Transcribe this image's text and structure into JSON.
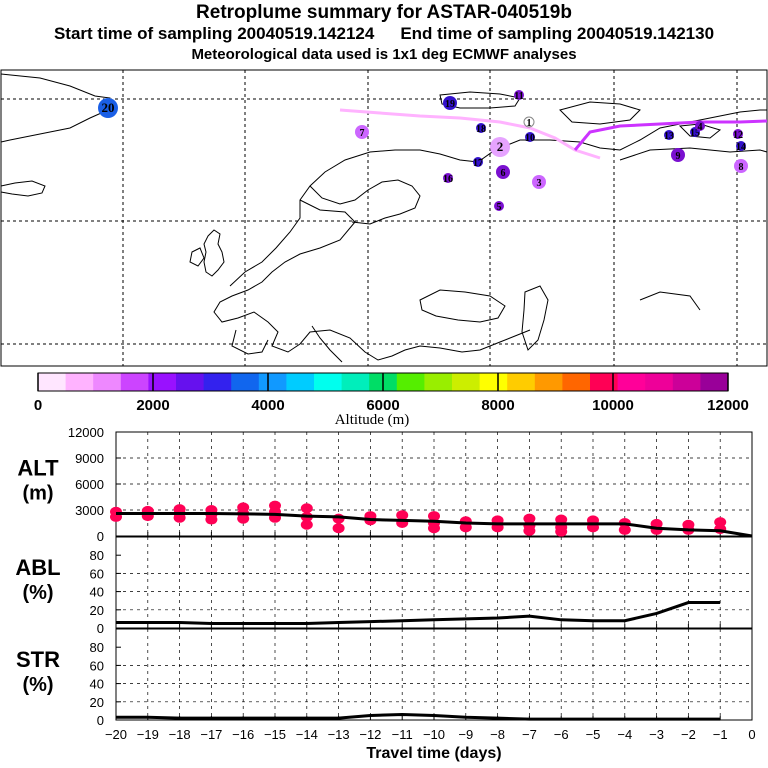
{
  "header": {
    "title": "Retroplume summary for ASTAR-040519b",
    "start_label": "Start time of sampling 20040519.142124",
    "end_label": "End time of sampling 20040519.142130",
    "met_label": "Meteorological data used is 1x1 deg ECMWF analyses"
  },
  "map": {
    "path_color_1": "#ffb3ff",
    "path_color_2": "#cc33ff",
    "markers": [
      {
        "label": "20",
        "color": "#1a5fe6",
        "size": "large"
      },
      {
        "label": "19",
        "color": "#3311cc",
        "size": "medium"
      },
      {
        "label": "18",
        "color": "#3311cc",
        "size": "small"
      },
      {
        "label": "17",
        "color": "#3311cc",
        "size": "small"
      },
      {
        "label": "16",
        "color": "#7a10d0",
        "size": "small"
      },
      {
        "label": "15",
        "color": "#3311cc",
        "size": "small"
      },
      {
        "label": "14",
        "color": "#3311cc",
        "size": "small"
      },
      {
        "label": "13",
        "color": "#3311cc",
        "size": "small"
      },
      {
        "label": "12",
        "color": "#7a10d0",
        "size": "small"
      },
      {
        "label": "11",
        "color": "#7a10d0",
        "size": "small"
      },
      {
        "label": "10",
        "color": "#3311cc",
        "size": "small"
      },
      {
        "label": "9",
        "color": "#7a10d0",
        "size": "medium"
      },
      {
        "label": "8",
        "color": "#cc66ff",
        "size": "medium"
      },
      {
        "label": "7",
        "color": "#cc66ff",
        "size": "medium"
      },
      {
        "label": "6",
        "color": "#7a10d0",
        "size": "medium"
      },
      {
        "label": "5",
        "color": "#7a10d0",
        "size": "small"
      },
      {
        "label": "4",
        "color": "#7a10d0",
        "size": "small"
      },
      {
        "label": "3",
        "color": "#cc66ff",
        "size": "medium"
      },
      {
        "label": "2",
        "color": "#e6a3ff",
        "size": "large"
      },
      {
        "label": "1",
        "color": "#ffffff",
        "size": "small"
      }
    ]
  },
  "colorbar": {
    "tick_labels": [
      "0",
      "2000",
      "4000",
      "6000",
      "8000",
      "10000",
      "12000"
    ],
    "title": "Altitude (m)",
    "colors": [
      "#ffe6ff",
      "#ffb3ff",
      "#ee88ff",
      "#cc44ff",
      "#9911ff",
      "#6611ee",
      "#3322ee",
      "#1166ee",
      "#1199ff",
      "#00ccff",
      "#00ffee",
      "#00eebb",
      "#00dd66",
      "#55ee00",
      "#99ee00",
      "#ccee00",
      "#ffff00",
      "#ffcc00",
      "#ff9900",
      "#ff6600",
      "#ff0055",
      "#ff0099",
      "#ee0099",
      "#cc0099",
      "#990099"
    ]
  },
  "chart_data": [
    {
      "type": "line",
      "panel": "ALT",
      "ylabel": "ALT (m)",
      "xlabel": "Travel time (days)",
      "xlim": [
        -20,
        0
      ],
      "ylim": [
        0,
        12000
      ],
      "yticks": [
        "12000",
        "9000",
        "6000",
        "3000",
        "0"
      ],
      "x": [
        -20,
        -19,
        -18,
        -17,
        -16,
        -15,
        -14,
        -13,
        -12,
        -11,
        -10,
        -9,
        -8,
        -7,
        -6,
        -5,
        -4,
        -3,
        -2,
        -1,
        0
      ],
      "values": [
        2600,
        2600,
        2600,
        2600,
        2550,
        2500,
        2300,
        2200,
        1900,
        1800,
        1700,
        1500,
        1400,
        1400,
        1400,
        1400,
        1400,
        900,
        700,
        600,
        0
      ],
      "marker_color": "#ff0055",
      "markers": [
        {
          "x": -20,
          "y": 2800
        },
        {
          "x": -20,
          "y": 2200
        },
        {
          "x": -19,
          "y": 2900
        },
        {
          "x": -19,
          "y": 2300
        },
        {
          "x": -18,
          "y": 3100
        },
        {
          "x": -18,
          "y": 2600
        },
        {
          "x": -18,
          "y": 2100
        },
        {
          "x": -17,
          "y": 3000
        },
        {
          "x": -17,
          "y": 2500
        },
        {
          "x": -17,
          "y": 1900
        },
        {
          "x": -16,
          "y": 3300
        },
        {
          "x": -16,
          "y": 2600
        },
        {
          "x": -16,
          "y": 2000
        },
        {
          "x": -15,
          "y": 3500
        },
        {
          "x": -15,
          "y": 2800
        },
        {
          "x": -15,
          "y": 2100
        },
        {
          "x": -14,
          "y": 3200
        },
        {
          "x": -14,
          "y": 2200
        },
        {
          "x": -14,
          "y": 1300
        },
        {
          "x": -13,
          "y": 2000
        },
        {
          "x": -13,
          "y": 900
        },
        {
          "x": -12,
          "y": 2300
        },
        {
          "x": -12,
          "y": 1800
        },
        {
          "x": -11,
          "y": 2400
        },
        {
          "x": -11,
          "y": 1500
        },
        {
          "x": -10,
          "y": 2300
        },
        {
          "x": -10,
          "y": 1500
        },
        {
          "x": -10,
          "y": 900
        },
        {
          "x": -9,
          "y": 1700
        },
        {
          "x": -9,
          "y": 1000
        },
        {
          "x": -8,
          "y": 1800
        },
        {
          "x": -8,
          "y": 1000
        },
        {
          "x": -7,
          "y": 2000
        },
        {
          "x": -7,
          "y": 1200
        },
        {
          "x": -7,
          "y": 600
        },
        {
          "x": -6,
          "y": 1900
        },
        {
          "x": -6,
          "y": 1000
        },
        {
          "x": -6,
          "y": 500
        },
        {
          "x": -5,
          "y": 1800
        },
        {
          "x": -5,
          "y": 1000
        },
        {
          "x": -4,
          "y": 1500
        },
        {
          "x": -4,
          "y": 700
        },
        {
          "x": -3,
          "y": 1400
        },
        {
          "x": -3,
          "y": 700
        },
        {
          "x": -2,
          "y": 1300
        },
        {
          "x": -2,
          "y": 700
        },
        {
          "x": -1,
          "y": 1600
        },
        {
          "x": -1,
          "y": 800
        }
      ]
    },
    {
      "type": "line",
      "panel": "ABL",
      "ylabel": "ABL (%)",
      "xlim": [
        -20,
        0
      ],
      "ylim": [
        0,
        100
      ],
      "yticks": [
        "80",
        "60",
        "40",
        "20",
        "0"
      ],
      "x": [
        -20,
        -19,
        -18,
        -17,
        -16,
        -15,
        -14,
        -13,
        -12,
        -11,
        -10,
        -9,
        -8,
        -7,
        -6,
        -5,
        -4,
        -3,
        -2,
        -1
      ],
      "values": [
        6,
        6,
        6,
        5,
        5,
        5,
        5,
        6,
        7,
        8,
        9,
        10,
        11,
        13,
        9,
        8,
        8,
        16,
        28,
        28
      ]
    },
    {
      "type": "line",
      "panel": "STR",
      "ylabel": "STR (%)",
      "xlim": [
        -20,
        0
      ],
      "ylim": [
        0,
        100
      ],
      "yticks": [
        "80",
        "60",
        "40",
        "20",
        "0"
      ],
      "xticks": [
        "−20",
        "−19",
        "−18",
        "−17",
        "−16",
        "−15",
        "−14",
        "−13",
        "−12",
        "−11",
        "−10",
        "−9",
        "−8",
        "−7",
        "−6",
        "−5",
        "−4",
        "−3",
        "−2",
        "−1",
        "0"
      ],
      "x": [
        -20,
        -19,
        -18,
        -17,
        -16,
        -15,
        -14,
        -13,
        -12,
        -11,
        -10,
        -9,
        -8,
        -7,
        -6,
        -5,
        -4,
        -3,
        -2,
        -1
      ],
      "values": [
        3,
        3,
        2,
        2,
        2,
        2,
        2,
        2,
        5,
        6,
        5,
        3,
        2,
        1,
        1,
        1,
        1,
        1,
        1,
        1
      ]
    }
  ]
}
